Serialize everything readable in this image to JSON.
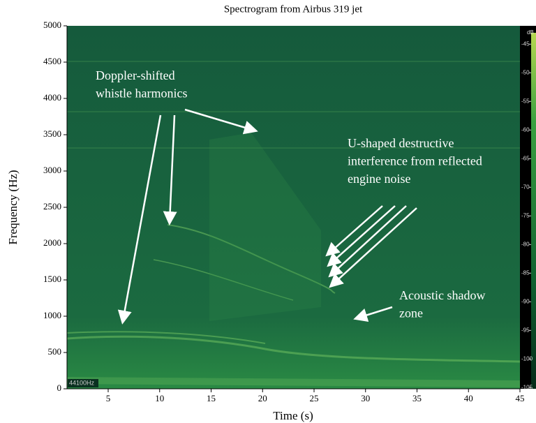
{
  "chart_data": {
    "type": "spectrogram",
    "title": "Spectrogram from Airbus 319 jet",
    "x_label": "Time (s)",
    "y_label": "Frequency (Hz)",
    "xlim": [
      1,
      45
    ],
    "xticks": [
      5,
      10,
      15,
      20,
      25,
      30,
      35,
      40,
      45
    ],
    "ylim": [
      0,
      5000
    ],
    "yticks": [
      0,
      500,
      1000,
      1500,
      2000,
      2500,
      3000,
      3500,
      4000,
      4500,
      5000
    ],
    "colorbar": {
      "label": "dB",
      "clim": [
        -105.2,
        -41.8
      ],
      "ticks": [
        -45,
        -50,
        -55,
        -60,
        -65,
        -70,
        -75,
        -80,
        -85,
        -90,
        -95,
        -100,
        -105
      ]
    },
    "sample_rate_label": "44100Hz",
    "annotations": [
      {
        "lines": [
          "Doppler-shifted",
          "whistle harmonics"
        ]
      },
      {
        "lines": [
          "U-shaped destructive",
          "interference from reflected",
          "engine noise"
        ]
      },
      {
        "lines": [
          "Acoustic shadow",
          "zone"
        ]
      }
    ]
  }
}
